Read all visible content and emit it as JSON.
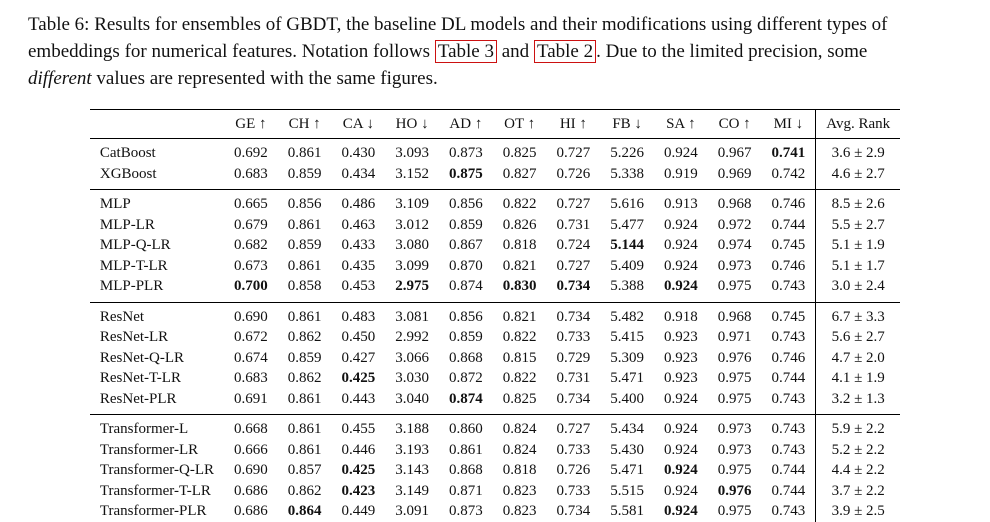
{
  "page": {
    "background": "#ffffff"
  },
  "colors": {
    "ref_box": "#cc1111",
    "text": "#111111"
  },
  "caption": {
    "segments": [
      {
        "text": "Table 6: Results for ensembles of GBDT, the baseline DL models and their modifications using different types of embeddings for numerical features. Notation follows ",
        "style": "normal"
      },
      {
        "text": "Table 3",
        "style": "ref"
      },
      {
        "text": " and ",
        "style": "normal"
      },
      {
        "text": "Table 2",
        "style": "ref"
      },
      {
        "text": ". Due to the limited precision, some ",
        "style": "normal"
      },
      {
        "text": "different",
        "style": "italic"
      },
      {
        "text": " values are represented with the same figures.",
        "style": "normal"
      }
    ]
  },
  "table": {
    "columns": [
      "GE ↑",
      "CH ↑",
      "CA ↓",
      "HO ↓",
      "AD ↑",
      "OT ↑",
      "HI ↑",
      "FB ↓",
      "SA ↑",
      "CO ↑",
      "MI ↓"
    ],
    "rank_header": "Avg. Rank",
    "groups": [
      {
        "rows": [
          {
            "name": "CatBoost",
            "values": [
              "0.692",
              "0.861",
              "0.430",
              "3.093",
              "0.873",
              "0.825",
              "0.727",
              "5.226",
              "0.924",
              "0.967",
              "0.741"
            ],
            "bold": [
              10
            ],
            "rank": "3.6 ± 2.9"
          },
          {
            "name": "XGBoost",
            "values": [
              "0.683",
              "0.859",
              "0.434",
              "3.152",
              "0.875",
              "0.827",
              "0.726",
              "5.338",
              "0.919",
              "0.969",
              "0.742"
            ],
            "bold": [
              4
            ],
            "rank": "4.6 ± 2.7"
          }
        ]
      },
      {
        "rows": [
          {
            "name": "MLP",
            "values": [
              "0.665",
              "0.856",
              "0.486",
              "3.109",
              "0.856",
              "0.822",
              "0.727",
              "5.616",
              "0.913",
              "0.968",
              "0.746"
            ],
            "bold": [],
            "rank": "8.5 ± 2.6"
          },
          {
            "name": "MLP-LR",
            "values": [
              "0.679",
              "0.861",
              "0.463",
              "3.012",
              "0.859",
              "0.826",
              "0.731",
              "5.477",
              "0.924",
              "0.972",
              "0.744"
            ],
            "bold": [],
            "rank": "5.5 ± 2.7"
          },
          {
            "name": "MLP-Q-LR",
            "values": [
              "0.682",
              "0.859",
              "0.433",
              "3.080",
              "0.867",
              "0.818",
              "0.724",
              "5.144",
              "0.924",
              "0.974",
              "0.745"
            ],
            "bold": [
              7
            ],
            "rank": "5.1 ± 1.9"
          },
          {
            "name": "MLP-T-LR",
            "values": [
              "0.673",
              "0.861",
              "0.435",
              "3.099",
              "0.870",
              "0.821",
              "0.727",
              "5.409",
              "0.924",
              "0.973",
              "0.746"
            ],
            "bold": [],
            "rank": "5.1 ± 1.7"
          },
          {
            "name": "MLP-PLR",
            "values": [
              "0.700",
              "0.858",
              "0.453",
              "2.975",
              "0.874",
              "0.830",
              "0.734",
              "5.388",
              "0.924",
              "0.975",
              "0.743"
            ],
            "bold": [
              0,
              3,
              5,
              6,
              8
            ],
            "rank": "3.0 ± 2.4"
          }
        ]
      },
      {
        "rows": [
          {
            "name": "ResNet",
            "values": [
              "0.690",
              "0.861",
              "0.483",
              "3.081",
              "0.856",
              "0.821",
              "0.734",
              "5.482",
              "0.918",
              "0.968",
              "0.745"
            ],
            "bold": [],
            "rank": "6.7 ± 3.3"
          },
          {
            "name": "ResNet-LR",
            "values": [
              "0.672",
              "0.862",
              "0.450",
              "2.992",
              "0.859",
              "0.822",
              "0.733",
              "5.415",
              "0.923",
              "0.971",
              "0.743"
            ],
            "bold": [],
            "rank": "5.6 ± 2.7"
          },
          {
            "name": "ResNet-Q-LR",
            "values": [
              "0.674",
              "0.859",
              "0.427",
              "3.066",
              "0.868",
              "0.815",
              "0.729",
              "5.309",
              "0.923",
              "0.976",
              "0.746"
            ],
            "bold": [],
            "rank": "4.7 ± 2.0"
          },
          {
            "name": "ResNet-T-LR",
            "values": [
              "0.683",
              "0.862",
              "0.425",
              "3.030",
              "0.872",
              "0.822",
              "0.731",
              "5.471",
              "0.923",
              "0.975",
              "0.744"
            ],
            "bold": [
              2
            ],
            "rank": "4.1 ± 1.9"
          },
          {
            "name": "ResNet-PLR",
            "values": [
              "0.691",
              "0.861",
              "0.443",
              "3.040",
              "0.874",
              "0.825",
              "0.734",
              "5.400",
              "0.924",
              "0.975",
              "0.743"
            ],
            "bold": [
              4
            ],
            "rank": "3.2 ± 1.3"
          }
        ]
      },
      {
        "rows": [
          {
            "name": "Transformer-L",
            "values": [
              "0.668",
              "0.861",
              "0.455",
              "3.188",
              "0.860",
              "0.824",
              "0.727",
              "5.434",
              "0.924",
              "0.973",
              "0.743"
            ],
            "bold": [],
            "rank": "5.9 ± 2.2"
          },
          {
            "name": "Transformer-LR",
            "values": [
              "0.666",
              "0.861",
              "0.446",
              "3.193",
              "0.861",
              "0.824",
              "0.733",
              "5.430",
              "0.924",
              "0.973",
              "0.743"
            ],
            "bold": [],
            "rank": "5.2 ± 2.2"
          },
          {
            "name": "Transformer-Q-LR",
            "values": [
              "0.690",
              "0.857",
              "0.425",
              "3.143",
              "0.868",
              "0.818",
              "0.726",
              "5.471",
              "0.924",
              "0.975",
              "0.744"
            ],
            "bold": [
              2,
              8
            ],
            "rank": "4.4 ± 2.2"
          },
          {
            "name": "Transformer-T-LR",
            "values": [
              "0.686",
              "0.862",
              "0.423",
              "3.149",
              "0.871",
              "0.823",
              "0.733",
              "5.515",
              "0.924",
              "0.976",
              "0.744"
            ],
            "bold": [
              2,
              9
            ],
            "rank": "3.7 ± 2.2"
          },
          {
            "name": "Transformer-PLR",
            "values": [
              "0.686",
              "0.864",
              "0.449",
              "3.091",
              "0.873",
              "0.823",
              "0.734",
              "5.581",
              "0.924",
              "0.975",
              "0.743"
            ],
            "bold": [
              1,
              8
            ],
            "rank": "3.9 ± 2.5"
          }
        ]
      }
    ]
  }
}
